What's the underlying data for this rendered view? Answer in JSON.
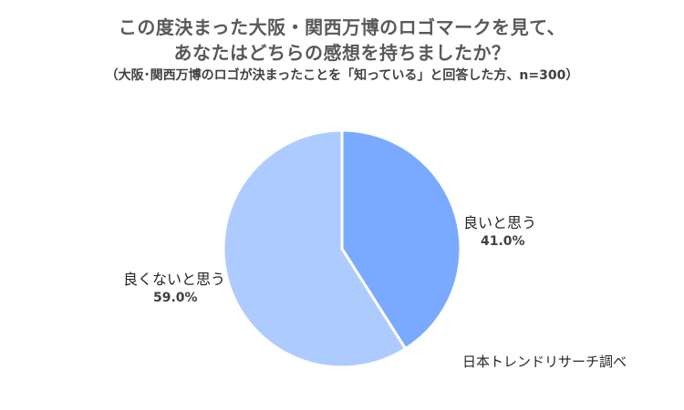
{
  "chart_data": {
    "type": "pie",
    "title": "この度決まった大阪・関西万博のロゴマークを見て、",
    "title_line2": "あなたはどちらの感想を持ちましたか？",
    "subtitle": "（大阪･関西万博のロゴが決まったことを「知っている」と回答した方、n=300）",
    "categories": [
      "良いと思う",
      "良くないと思う"
    ],
    "values": [
      41.0,
      59.0
    ],
    "value_labels": [
      "41.0%",
      "59.0%"
    ],
    "colors": [
      "#7aaaff",
      "#aecbff"
    ],
    "slice_border_color": "#ffffff",
    "start_angle": "12 o'clock, clockwise",
    "legend": "none (data labels beside slices)",
    "source": "日本トレンドリサーチ調べ"
  }
}
